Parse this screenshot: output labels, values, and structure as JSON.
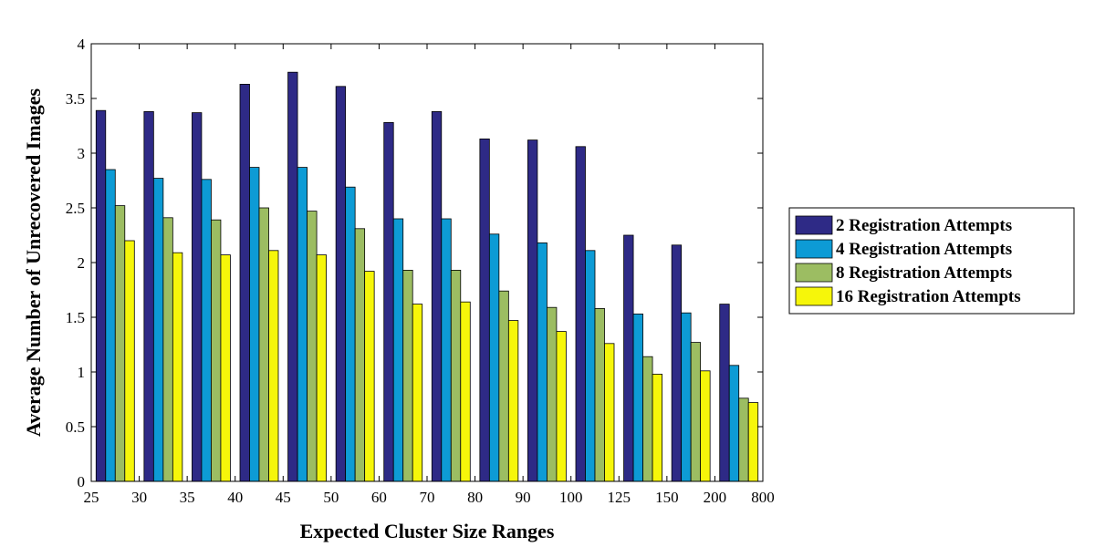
{
  "chart_data": {
    "type": "bar",
    "xlabel": "Expected Cluster Size Ranges",
    "ylabel": "Average Number of Unrecovered Images",
    "ylim": [
      0,
      4
    ],
    "yticks": [
      "0",
      "0.5",
      "1",
      "1.5",
      "2",
      "2.5",
      "3",
      "3.5",
      "4"
    ],
    "xticks": [
      "25",
      "30",
      "35",
      "40",
      "45",
      "50",
      "60",
      "70",
      "80",
      "90",
      "100",
      "125",
      "150",
      "200",
      "800"
    ],
    "grid": false,
    "legend_position": "right",
    "series": [
      {
        "name": "2 Registration Attempts",
        "color": "#2e2a86",
        "values": [
          3.39,
          3.38,
          3.37,
          3.63,
          3.74,
          3.61,
          3.28,
          3.38,
          3.13,
          3.12,
          3.06,
          2.25,
          2.16,
          1.62
        ]
      },
      {
        "name": "4 Registration Attempts",
        "color": "#0d9bd5",
        "values": [
          2.85,
          2.77,
          2.76,
          2.87,
          2.87,
          2.69,
          2.4,
          2.4,
          2.26,
          2.18,
          2.11,
          1.53,
          1.54,
          1.06
        ]
      },
      {
        "name": "8 Registration Attempts",
        "color": "#9cbd62",
        "values": [
          2.52,
          2.41,
          2.39,
          2.5,
          2.47,
          2.31,
          1.93,
          1.93,
          1.74,
          1.59,
          1.58,
          1.14,
          1.27,
          0.76
        ]
      },
      {
        "name": "16 Registration Attempts",
        "color": "#f6f60a",
        "values": [
          2.2,
          2.09,
          2.07,
          2.11,
          2.07,
          1.92,
          1.62,
          1.64,
          1.47,
          1.37,
          1.26,
          0.98,
          1.01,
          0.72
        ]
      }
    ]
  }
}
